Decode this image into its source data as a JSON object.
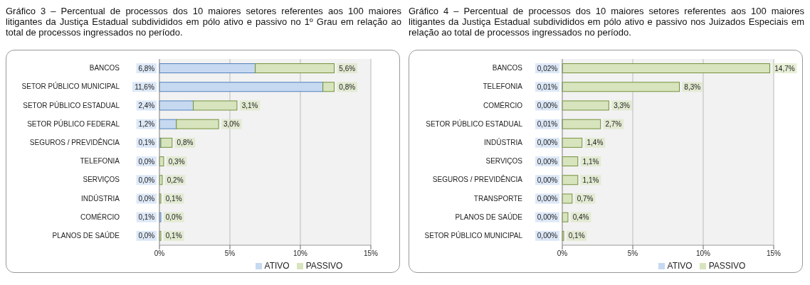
{
  "chart_data": [
    {
      "type": "bar",
      "title": "Gráfico 3 – Percentual de processos dos 10 maiores setores referentes aos 100 maiores litigantes da Justiça Estadual subdivididos em pólo ativo e passivo no 1º Grau em relação ao total de processos ingressados no período.",
      "orientation": "horizontal",
      "stacked": true,
      "grid": "x",
      "legend": "bottom",
      "categories": [
        "BANCOS",
        "SETOR PÚBLICO MUNICIPAL",
        "SETOR PÚBLICO ESTADUAL",
        "SETOR PÚBLICO FEDERAL",
        "SEGUROS / PREVIDÊNCIA",
        "TELEFONIA",
        "SERVIÇOS",
        "INDÚSTRIA",
        "COMÉRCIO",
        "PLANOS DE SAÚDE"
      ],
      "series": [
        {
          "name": "ATIVO",
          "color": "#c6d9f1",
          "values": [
            6.8,
            11.6,
            2.4,
            1.2,
            0.1,
            0.0,
            0.0,
            0.0,
            0.1,
            0.0
          ],
          "value_labels": [
            "6,8%",
            "11,6%",
            "2,4%",
            "1,2%",
            "0,1%",
            "0,0%",
            "0,0%",
            "0,0%",
            "0,1%",
            "0,0%"
          ]
        },
        {
          "name": "PASSIVO",
          "color": "#d7e4bd",
          "values": [
            5.6,
            0.8,
            3.1,
            3.0,
            0.8,
            0.3,
            0.2,
            0.1,
            0.0,
            0.1
          ],
          "value_labels": [
            "5,6%",
            "0,8%",
            "3,1%",
            "3,0%",
            "0,8%",
            "0,3%",
            "0,2%",
            "0,1%",
            "0,0%",
            "0,1%"
          ]
        }
      ],
      "xlim": [
        0,
        15
      ],
      "xticks": [
        {
          "value": 0,
          "label": "0%"
        },
        {
          "value": 5,
          "label": "5%"
        },
        {
          "value": 10,
          "label": "10%"
        },
        {
          "value": 15,
          "label": "15%"
        }
      ]
    },
    {
      "type": "bar",
      "title": "Gráfico 4 – Percentual de processos dos 10 maiores setores referentes aos 100 maiores litigantes da Justiça Estadual subdivididos em pólo ativo e passivo nos Juizados Especiais em relação ao total de processos ingressados no período.",
      "orientation": "horizontal",
      "stacked": true,
      "grid": "x",
      "legend": "bottom",
      "categories": [
        "BANCOS",
        "TELEFONIA",
        "COMÉRCIO",
        "SETOR PÚBLICO ESTADUAL",
        "INDÚSTRIA",
        "SERVIÇOS",
        "SEGUROS / PREVIDÊNCIA",
        "TRANSPORTE",
        "PLANOS DE SAÚDE",
        "SETOR PÚBLICO MUNICIPAL"
      ],
      "series": [
        {
          "name": "ATIVO",
          "color": "#c6d9f1",
          "values": [
            0.02,
            0.01,
            0.0,
            0.01,
            0.0,
            0.0,
            0.0,
            0.0,
            0.0,
            0.0
          ],
          "value_labels": [
            "0,02%",
            "0,01%",
            "0,00%",
            "0,01%",
            "0,00%",
            "0,00%",
            "0,00%",
            "0,00%",
            "0,00%",
            "0,00%"
          ]
        },
        {
          "name": "PASSIVO",
          "color": "#d7e4bd",
          "values": [
            14.7,
            8.3,
            3.3,
            2.7,
            1.4,
            1.1,
            1.1,
            0.7,
            0.4,
            0.1
          ],
          "value_labels": [
            "14,7%",
            "8,3%",
            "3,3%",
            "2,7%",
            "1,4%",
            "1,1%",
            "1,1%",
            "0,7%",
            "0,4%",
            "0,1%"
          ]
        }
      ],
      "xlim": [
        0,
        15
      ],
      "xticks": [
        {
          "value": 0,
          "label": "0%"
        },
        {
          "value": 5,
          "label": "5%"
        },
        {
          "value": 10,
          "label": "10%"
        },
        {
          "value": 15,
          "label": "15%"
        }
      ]
    }
  ]
}
